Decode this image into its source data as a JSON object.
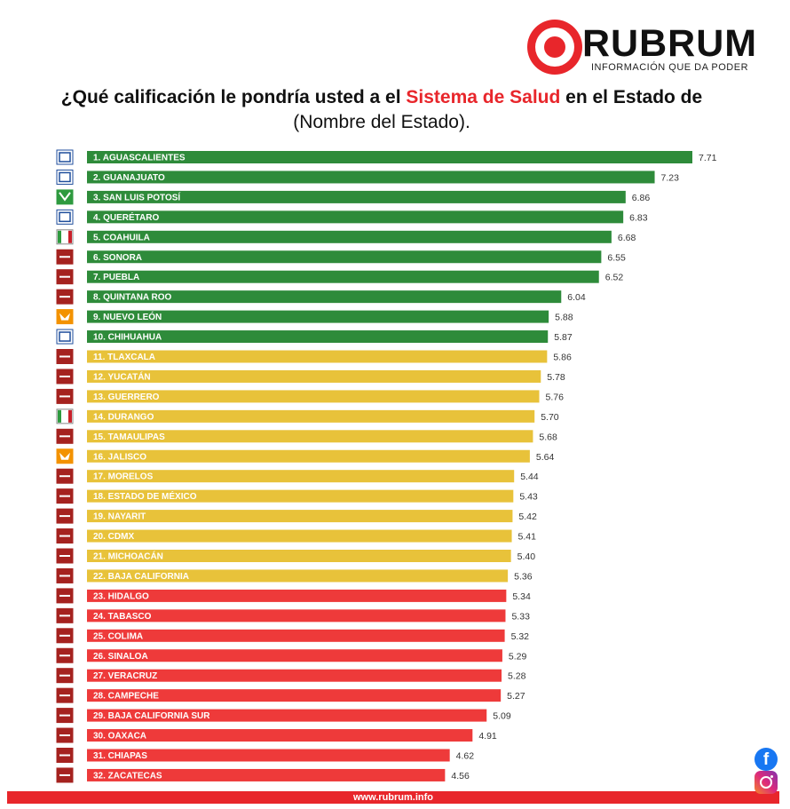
{
  "header": {
    "logo_text": "RUBRUM",
    "logo_tagline": "INFORMACIÓN QUE DA PODER",
    "title_part1": "¿Qué calificación le pondría usted a el ",
    "title_highlight": "Sistema de Salud",
    "title_part2": " en el Estado de ",
    "title_part3": "(Nombre del Estado)."
  },
  "footer": {
    "url": "www.rubrum.info"
  },
  "colors": {
    "green": "#2e8b3a",
    "yellow": "#e8c23a",
    "red": "#ee3a3a",
    "brand_red": "#e8262b"
  },
  "party_icons": {
    "PAN": "pan-party-icon",
    "PVEM": "pvem-party-icon",
    "PRI": "pri-party-icon",
    "MORENA": "morena-party-icon",
    "MC": "mc-party-icon"
  },
  "chart_data": {
    "type": "bar",
    "orientation": "horizontal",
    "title": "¿Qué calificación le pondría usted a el Sistema de Salud en el Estado de (Nombre del Estado).",
    "xlim": [
      0,
      7.71
    ],
    "categories": [
      "1. AGUASCALIENTES",
      "2. GUANAJUATO",
      "3. SAN LUIS POTOSÍ",
      "4. QUERÉTARO",
      "5. COAHUILA",
      "6. SONORA",
      "7. PUEBLA",
      "8. QUINTANA ROO",
      "9. NUEVO LEÓN",
      "10. CHIHUAHUA",
      "11. TLAXCALA",
      "12. YUCATÁN",
      "13. GUERRERO",
      "14. DURANGO",
      "15. TAMAULIPAS",
      "16. JALISCO",
      "17. MORELOS",
      "18. ESTADO DE MÉXICO",
      "19. NAYARIT",
      "20. CDMX",
      "21. MICHOACÁN",
      "22. BAJA CALIFORNIA",
      "23. HIDALGO",
      "24. TABASCO",
      "25. COLIMA",
      "26. SINALOA",
      "27. VERACRUZ",
      "28. CAMPECHE",
      "29. BAJA CALIFORNIA SUR",
      "30. OAXACA",
      "31. CHIAPAS",
      "32. ZACATECAS"
    ],
    "values": [
      7.71,
      7.23,
      6.86,
      6.83,
      6.68,
      6.55,
      6.52,
      6.04,
      5.88,
      5.87,
      5.86,
      5.78,
      5.76,
      5.7,
      5.68,
      5.64,
      5.44,
      5.43,
      5.42,
      5.41,
      5.4,
      5.36,
      5.34,
      5.33,
      5.32,
      5.29,
      5.28,
      5.27,
      5.09,
      4.91,
      4.62,
      4.56
    ],
    "value_labels": [
      "7.71",
      "7.23",
      "6.86",
      "6.83",
      "6.68",
      "6.55",
      "6.52",
      "6.04",
      "5.88",
      "5.87",
      "5.86",
      "5.78",
      "5.76",
      "5.70",
      "5.68",
      "5.64",
      "5.44",
      "5.43",
      "5.42",
      "5.41",
      "5.40",
      "5.36",
      "5.34",
      "5.33",
      "5.32",
      "5.29",
      "5.28",
      "5.27",
      "5.09",
      "4.91",
      "4.62",
      "4.56"
    ],
    "bar_colors": [
      "green",
      "green",
      "green",
      "green",
      "green",
      "green",
      "green",
      "green",
      "green",
      "green",
      "yellow",
      "yellow",
      "yellow",
      "yellow",
      "yellow",
      "yellow",
      "yellow",
      "yellow",
      "yellow",
      "yellow",
      "yellow",
      "yellow",
      "red",
      "red",
      "red",
      "red",
      "red",
      "red",
      "red",
      "red",
      "red",
      "red"
    ],
    "parties": [
      "PAN",
      "PAN",
      "PVEM",
      "PAN",
      "PRI",
      "MORENA",
      "MORENA",
      "MORENA",
      "MC",
      "PAN",
      "MORENA",
      "MORENA",
      "MORENA",
      "PRI",
      "MORENA",
      "MC",
      "MORENA",
      "MORENA",
      "MORENA",
      "MORENA",
      "MORENA",
      "MORENA",
      "MORENA",
      "MORENA",
      "MORENA",
      "MORENA",
      "MORENA",
      "MORENA",
      "MORENA",
      "MORENA",
      "MORENA",
      "MORENA"
    ]
  }
}
